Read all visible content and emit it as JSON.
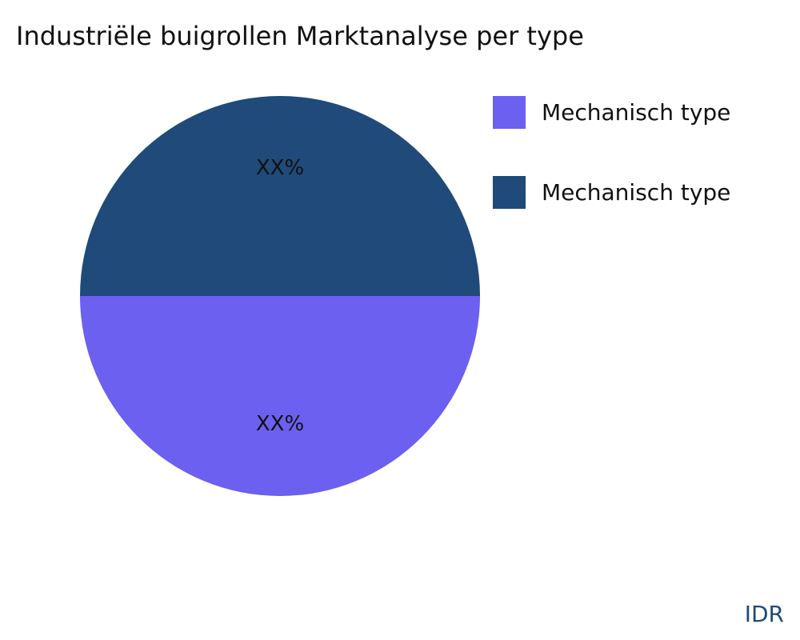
{
  "chart_data": {
    "type": "pie",
    "title": "Industriële buigrollen Marktanalyse per type",
    "slices": [
      {
        "name": "Mechanisch type",
        "value": 50,
        "label": "XX%",
        "color": "#6c60f0"
      },
      {
        "name": "Mechanisch type",
        "value": 50,
        "label": "XX%",
        "color": "#1f4a7a"
      }
    ],
    "legend_placement": "top-right"
  },
  "brand": "IDR"
}
